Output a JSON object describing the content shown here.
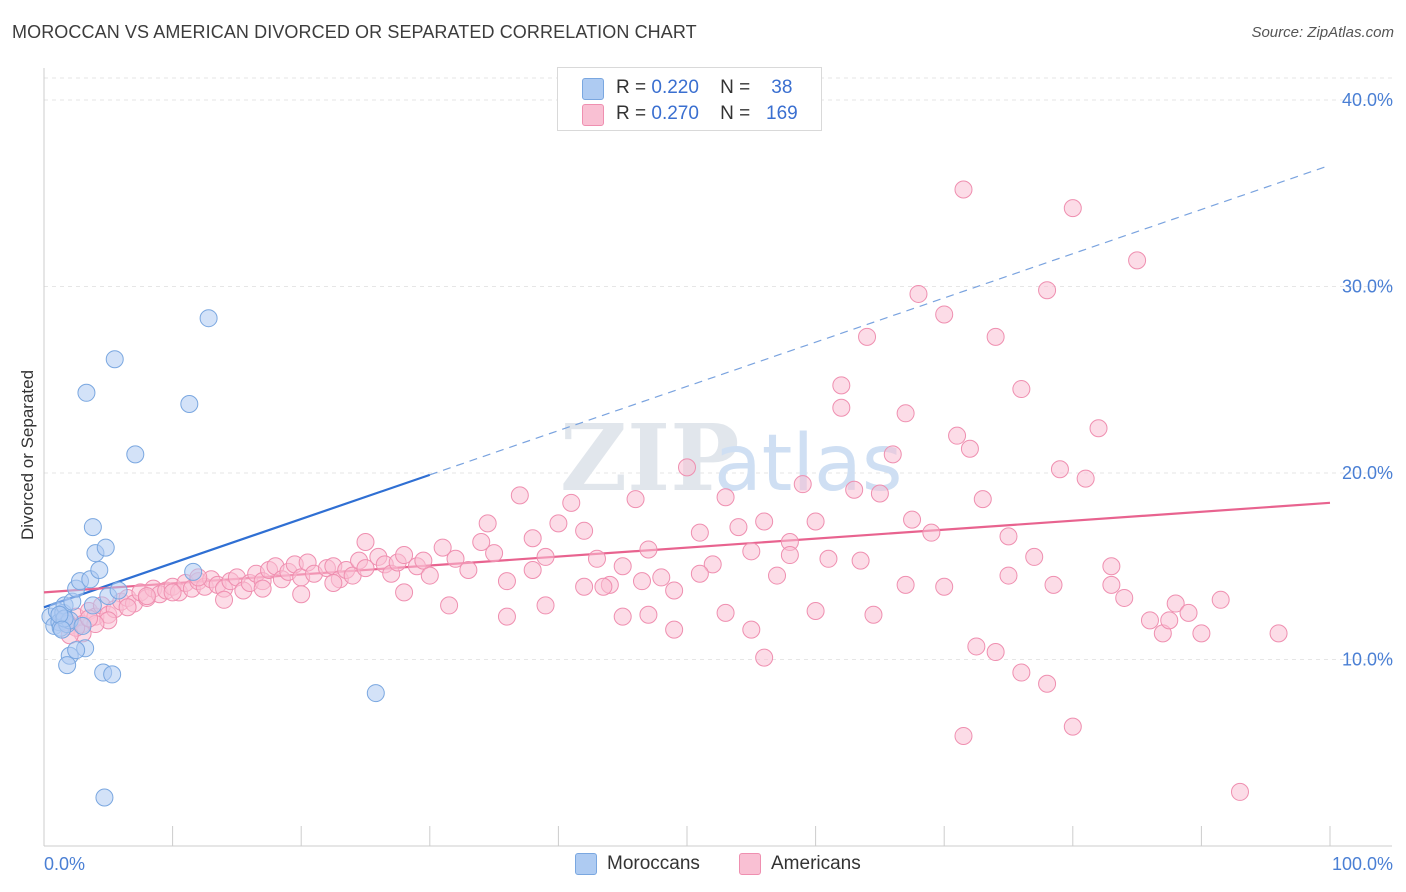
{
  "title": "MOROCCAN VS AMERICAN DIVORCED OR SEPARATED CORRELATION CHART",
  "source": "Source: ZipAtlas.com",
  "watermark": "ZIPatlas",
  "legend": {
    "rows": [
      {
        "r_label": "R =",
        "r_value": "0.220",
        "n_label": "N =",
        "n_value": "38",
        "color": "#aecbf2",
        "stroke": "#7aa7e0"
      },
      {
        "r_label": "R =",
        "r_value": "0.270",
        "n_label": "N =",
        "n_value": "169",
        "color": "#f9c0d3",
        "stroke": "#ef8fb0"
      }
    ]
  },
  "bottom_legend": [
    {
      "label": "Moroccans",
      "color": "#aecbf2",
      "stroke": "#7aa7e0"
    },
    {
      "label": "Americans",
      "color": "#f9c0d3",
      "stroke": "#ef8fb0"
    }
  ],
  "chart_data": {
    "type": "scatter",
    "title": "MOROCCAN VS AMERICAN DIVORCED OR SEPARATED CORRELATION CHART",
    "xlabel": "",
    "ylabel": "Divorced or Separated",
    "xlim": [
      0,
      100
    ],
    "ylim": [
      0,
      41.5
    ],
    "x_tick_labels": [
      "0.0%",
      "100.0%"
    ],
    "y_tick_labels": [
      "10.0%",
      "20.0%",
      "30.0%",
      "40.0%"
    ],
    "y_ticks": [
      10,
      20,
      30,
      40
    ],
    "grid": true,
    "legend_position": "top-center",
    "series": [
      {
        "name": "Moroccans",
        "color": "#7aa7e0",
        "fill": "#aecbf2",
        "trend": {
          "x": [
            0,
            30
          ],
          "y": [
            12.8,
            19.9
          ],
          "extended_to": [
            100,
            36.5
          ],
          "color": "#2f6fd3"
        },
        "points": [
          [
            0.5,
            12.3
          ],
          [
            0.8,
            11.8
          ],
          [
            1.0,
            12.6
          ],
          [
            1.2,
            12.0
          ],
          [
            1.3,
            11.7
          ],
          [
            1.5,
            12.5
          ],
          [
            1.6,
            12.9
          ],
          [
            1.8,
            11.9
          ],
          [
            2.0,
            12.1
          ],
          [
            1.6,
            12.2
          ],
          [
            2.2,
            13.1
          ],
          [
            2.5,
            13.8
          ],
          [
            2.8,
            14.2
          ],
          [
            3.2,
            10.6
          ],
          [
            2.0,
            10.2
          ],
          [
            1.8,
            9.7
          ],
          [
            3.0,
            11.8
          ],
          [
            3.6,
            14.3
          ],
          [
            3.8,
            12.9
          ],
          [
            4.0,
            15.7
          ],
          [
            4.3,
            14.8
          ],
          [
            4.6,
            9.3
          ],
          [
            5.0,
            13.4
          ],
          [
            5.3,
            9.2
          ],
          [
            4.8,
            16.0
          ],
          [
            2.5,
            10.5
          ],
          [
            3.8,
            17.1
          ],
          [
            5.8,
            13.7
          ],
          [
            3.3,
            24.3
          ],
          [
            5.5,
            26.1
          ],
          [
            7.1,
            21.0
          ],
          [
            11.3,
            23.7
          ],
          [
            12.8,
            28.3
          ],
          [
            11.6,
            14.7
          ],
          [
            25.8,
            8.2
          ],
          [
            4.7,
            2.6
          ],
          [
            1.2,
            12.4
          ],
          [
            1.4,
            11.6
          ]
        ]
      },
      {
        "name": "Americans",
        "color": "#ef8fb0",
        "fill": "#f9c0d3",
        "trend": {
          "x": [
            0,
            100
          ],
          "y": [
            13.6,
            18.4
          ],
          "color": "#e8638f"
        },
        "points": [
          [
            1.5,
            12.1
          ],
          [
            2.0,
            11.8
          ],
          [
            2.5,
            12.3
          ],
          [
            3.0,
            11.9
          ],
          [
            3.5,
            12.6
          ],
          [
            4.0,
            12.3
          ],
          [
            4.5,
            12.9
          ],
          [
            5.0,
            12.4
          ],
          [
            5.5,
            12.7
          ],
          [
            6.0,
            13.1
          ],
          [
            6.5,
            13.3
          ],
          [
            7.0,
            13.0
          ],
          [
            7.5,
            13.6
          ],
          [
            8.0,
            13.3
          ],
          [
            8.5,
            13.8
          ],
          [
            9.0,
            13.5
          ],
          [
            9.5,
            13.7
          ],
          [
            10.0,
            13.9
          ],
          [
            10.5,
            13.6
          ],
          [
            11.0,
            14.1
          ],
          [
            11.5,
            13.8
          ],
          [
            12.0,
            14.2
          ],
          [
            12.5,
            13.9
          ],
          [
            13.0,
            14.3
          ],
          [
            13.5,
            14.0
          ],
          [
            14.0,
            13.8
          ],
          [
            14.5,
            14.2
          ],
          [
            15.0,
            14.4
          ],
          [
            15.5,
            13.7
          ],
          [
            16.0,
            14.1
          ],
          [
            16.5,
            14.6
          ],
          [
            17.0,
            14.2
          ],
          [
            17.5,
            14.8
          ],
          [
            18.0,
            15.0
          ],
          [
            18.5,
            14.3
          ],
          [
            19.0,
            14.7
          ],
          [
            19.5,
            15.1
          ],
          [
            20.0,
            14.4
          ],
          [
            20.5,
            15.2
          ],
          [
            21.0,
            14.6
          ],
          [
            22.0,
            14.9
          ],
          [
            22.5,
            15.0
          ],
          [
            23.0,
            14.3
          ],
          [
            23.5,
            14.8
          ],
          [
            24.0,
            14.5
          ],
          [
            24.5,
            15.3
          ],
          [
            25.0,
            14.9
          ],
          [
            26.0,
            15.5
          ],
          [
            26.5,
            15.1
          ],
          [
            27.0,
            14.6
          ],
          [
            27.5,
            15.2
          ],
          [
            28.0,
            15.6
          ],
          [
            29.0,
            15.0
          ],
          [
            29.5,
            15.3
          ],
          [
            30.0,
            14.5
          ],
          [
            31.0,
            16.0
          ],
          [
            32.0,
            15.4
          ],
          [
            33.0,
            14.8
          ],
          [
            34.0,
            16.3
          ],
          [
            35.0,
            15.7
          ],
          [
            36.0,
            14.2
          ],
          [
            37.0,
            18.8
          ],
          [
            38.0,
            16.5
          ],
          [
            39.0,
            15.5
          ],
          [
            40.0,
            17.3
          ],
          [
            41.0,
            18.4
          ],
          [
            42.0,
            16.9
          ],
          [
            43.0,
            15.4
          ],
          [
            44.0,
            14.0
          ],
          [
            45.0,
            15.0
          ],
          [
            46.0,
            18.6
          ],
          [
            47.0,
            15.9
          ],
          [
            48.0,
            14.4
          ],
          [
            49.0,
            13.7
          ],
          [
            50.0,
            20.3
          ],
          [
            51.0,
            16.8
          ],
          [
            52.0,
            15.1
          ],
          [
            53.0,
            18.7
          ],
          [
            54.0,
            17.1
          ],
          [
            55.0,
            15.8
          ],
          [
            56.0,
            17.4
          ],
          [
            57.0,
            14.5
          ],
          [
            58.0,
            16.3
          ],
          [
            59.0,
            19.4
          ],
          [
            60.0,
            17.4
          ],
          [
            61.0,
            15.4
          ],
          [
            62.0,
            24.7
          ],
          [
            63.0,
            19.1
          ],
          [
            64.0,
            27.3
          ],
          [
            65.0,
            18.9
          ],
          [
            66.0,
            21.0
          ],
          [
            67.0,
            23.2
          ],
          [
            68.0,
            29.6
          ],
          [
            69.0,
            16.8
          ],
          [
            70.0,
            28.5
          ],
          [
            71.0,
            22.0
          ],
          [
            72.0,
            21.3
          ],
          [
            73.0,
            18.6
          ],
          [
            74.0,
            27.3
          ],
          [
            75.0,
            16.6
          ],
          [
            76.0,
            24.5
          ],
          [
            77.0,
            15.5
          ],
          [
            78.0,
            29.8
          ],
          [
            79.0,
            20.2
          ],
          [
            80.0,
            34.2
          ],
          [
            81.0,
            19.7
          ],
          [
            82.0,
            22.4
          ],
          [
            83.0,
            15.0
          ],
          [
            84.0,
            13.3
          ],
          [
            85.0,
            31.4
          ],
          [
            86.0,
            12.1
          ],
          [
            87.0,
            11.4
          ],
          [
            88.0,
            13.0
          ],
          [
            89.0,
            12.5
          ],
          [
            90.0,
            11.4
          ],
          [
            71.5,
            35.2
          ],
          [
            62.0,
            23.5
          ],
          [
            56.0,
            10.1
          ],
          [
            47.0,
            12.4
          ],
          [
            49.0,
            11.6
          ],
          [
            53.0,
            12.5
          ],
          [
            60.0,
            12.6
          ],
          [
            64.5,
            12.4
          ],
          [
            67.0,
            14.0
          ],
          [
            70.0,
            13.9
          ],
          [
            71.5,
            5.9
          ],
          [
            72.5,
            10.7
          ],
          [
            74.0,
            10.4
          ],
          [
            76.0,
            9.3
          ],
          [
            78.0,
            8.7
          ],
          [
            80.0,
            6.4
          ],
          [
            83.0,
            14.0
          ],
          [
            87.5,
            12.1
          ],
          [
            91.5,
            13.2
          ],
          [
            93.0,
            2.9
          ],
          [
            96.0,
            11.4
          ],
          [
            34.5,
            17.3
          ],
          [
            36.0,
            12.3
          ],
          [
            31.5,
            12.9
          ],
          [
            28.0,
            13.6
          ],
          [
            25.0,
            16.3
          ],
          [
            22.5,
            14.1
          ],
          [
            20.0,
            13.5
          ],
          [
            17.0,
            13.8
          ],
          [
            14.0,
            13.2
          ],
          [
            12.0,
            14.4
          ],
          [
            10.0,
            13.6
          ],
          [
            8.0,
            13.4
          ],
          [
            6.5,
            12.8
          ],
          [
            5.0,
            12.1
          ],
          [
            4.0,
            11.9
          ],
          [
            3.0,
            11.4
          ],
          [
            2.5,
            11.7
          ],
          [
            2.0,
            11.3
          ],
          [
            1.8,
            12.0
          ],
          [
            3.5,
            12.2
          ],
          [
            45.0,
            12.3
          ],
          [
            42.0,
            13.9
          ],
          [
            39.0,
            12.9
          ],
          [
            38.0,
            14.8
          ],
          [
            51.0,
            14.6
          ],
          [
            55.0,
            11.6
          ],
          [
            58.0,
            15.6
          ],
          [
            46.5,
            14.2
          ],
          [
            43.5,
            13.9
          ],
          [
            67.5,
            17.5
          ],
          [
            63.5,
            15.3
          ],
          [
            75.0,
            14.5
          ],
          [
            78.5,
            14.0
          ]
        ]
      }
    ]
  }
}
